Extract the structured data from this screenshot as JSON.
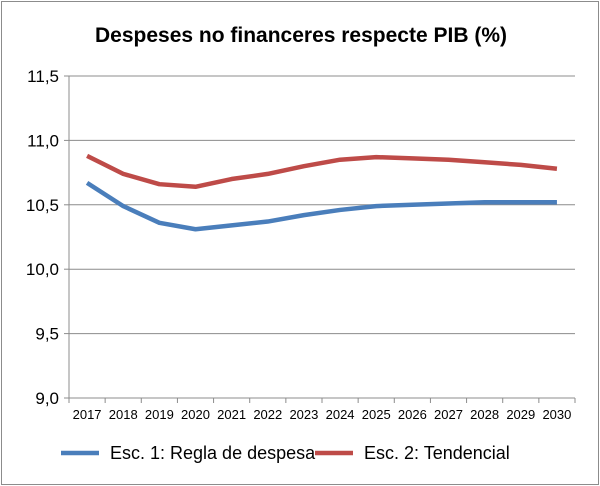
{
  "chart_data": {
    "type": "line",
    "title": "Despeses no financeres respecte PIB (%)",
    "xlabel": "",
    "ylabel": "",
    "ylim": [
      9.0,
      11.5
    ],
    "y_ticks": [
      "9,0",
      "9,5",
      "10,0",
      "10,5",
      "11,0",
      "11,5"
    ],
    "y_tick_values": [
      9.0,
      9.5,
      10.0,
      10.5,
      11.0,
      11.5
    ],
    "categories": [
      "2017",
      "2018",
      "2019",
      "2020",
      "2021",
      "2022",
      "2023",
      "2024",
      "2025",
      "2026",
      "2027",
      "2028",
      "2029",
      "2030"
    ],
    "grid": true,
    "legend_position": "bottom",
    "series": [
      {
        "name": "Esc. 1: Regla de despesa",
        "color": "#4a7ebb",
        "values": [
          10.67,
          10.49,
          10.36,
          10.31,
          10.34,
          10.37,
          10.42,
          10.46,
          10.49,
          10.5,
          10.51,
          10.52,
          10.52,
          10.52
        ]
      },
      {
        "name": "Esc. 2: Tendencial",
        "color": "#be4b48",
        "values": [
          10.88,
          10.74,
          10.66,
          10.64,
          10.7,
          10.74,
          10.8,
          10.85,
          10.87,
          10.86,
          10.85,
          10.83,
          10.81,
          10.78
        ]
      }
    ]
  }
}
